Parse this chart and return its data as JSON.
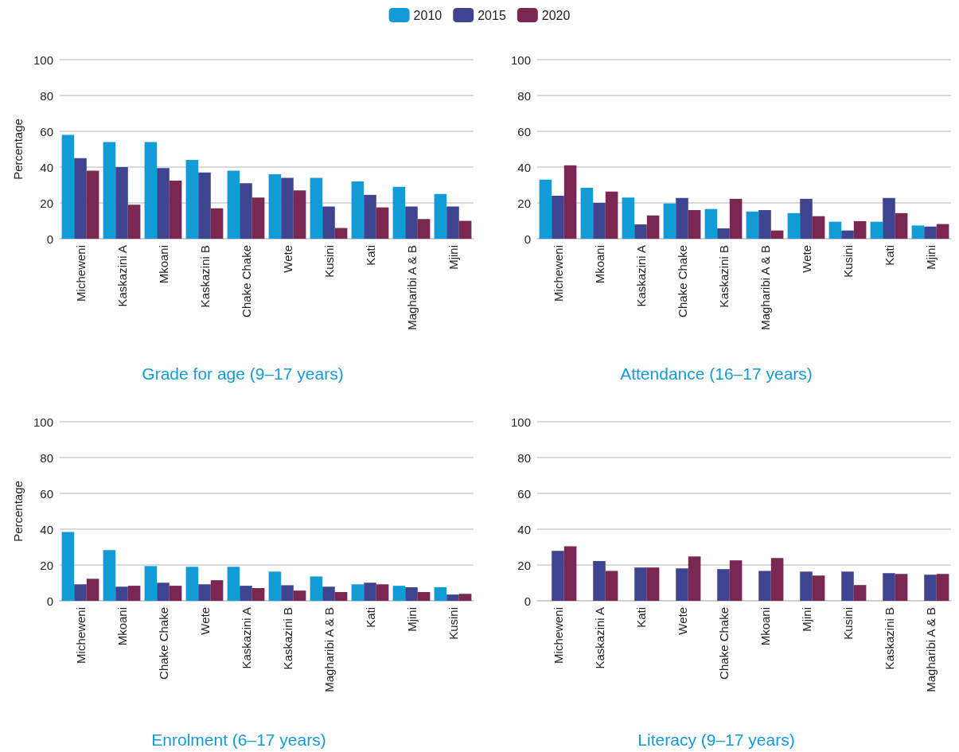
{
  "chart_data": [
    {
      "type": "bar",
      "title": "Grade for age (9–17 years)",
      "ylabel": "Percentage",
      "legend": "top",
      "grid": "y",
      "ylim": [
        0,
        100
      ],
      "yticks": [
        0,
        20,
        40,
        60,
        80,
        100
      ],
      "categories": [
        "Micheweni",
        "Kaskazini A",
        "Mkoani",
        "Kaskazini B",
        "Chake Chake",
        "Wete",
        "Kusini",
        "Kati",
        "Magharibi A & B",
        "Mjini"
      ],
      "series": [
        {
          "name": "2010",
          "color": "#139bd8",
          "values": [
            58,
            54,
            54,
            44,
            38,
            36,
            34,
            32,
            29,
            25
          ]
        },
        {
          "name": "2015",
          "color": "#3f4491",
          "values": [
            45,
            40,
            39.5,
            37,
            31,
            34,
            18,
            24.5,
            18,
            18
          ]
        },
        {
          "name": "2020",
          "color": "#7a2852",
          "values": [
            38,
            19,
            32.5,
            17,
            23,
            27,
            6,
            17.5,
            11,
            10
          ]
        }
      ]
    },
    {
      "type": "bar",
      "title": "Attendance (16–17 years)",
      "grid": "y",
      "ylim": [
        0,
        100
      ],
      "yticks": [
        0,
        20,
        40,
        60,
        80,
        100
      ],
      "categories": [
        "Micheweni",
        "Mkoani",
        "Kaskazini A",
        "Chake Chake",
        "Kaskazini B",
        "Magharibi A & B",
        "Wete",
        "Kusini",
        "Kati",
        "Mjini"
      ],
      "series": [
        {
          "name": "2010",
          "color": "#139bd8",
          "values": [
            33,
            28.5,
            23,
            19.7,
            16.6,
            15.2,
            14.3,
            9.5,
            9.5,
            7.4
          ]
        },
        {
          "name": "2015",
          "color": "#3f4491",
          "values": [
            24,
            20,
            8,
            22.8,
            5.8,
            16,
            22.3,
            4.6,
            22.8,
            6.8
          ]
        },
        {
          "name": "2020",
          "color": "#7a2852",
          "values": [
            41,
            26.3,
            13,
            16,
            22.3,
            4.6,
            12.6,
            9.8,
            14.3,
            8.2
          ]
        }
      ]
    },
    {
      "type": "bar",
      "title": "Enrolment (6–17 years)",
      "ylabel": "Percentage",
      "grid": "y",
      "ylim": [
        0,
        100
      ],
      "yticks": [
        0,
        20,
        40,
        60,
        80,
        100
      ],
      "categories": [
        "Micheweni",
        "Mkoani",
        "Chake Chake",
        "Wete",
        "Kaskazini A",
        "Kaskazini B",
        "Magharibi A & B",
        "Kati",
        "Mjini",
        "Kusini"
      ],
      "series": [
        {
          "name": "2010",
          "color": "#139bd8",
          "values": [
            38.4,
            28.3,
            19.4,
            19,
            19,
            16.3,
            13.6,
            9.2,
            8.4,
            7.6
          ]
        },
        {
          "name": "2015",
          "color": "#3f4491",
          "values": [
            9.2,
            7.9,
            10.1,
            9.2,
            8.4,
            8.7,
            7.9,
            10.1,
            7.6,
            3.5
          ]
        },
        {
          "name": "2020",
          "color": "#7a2852",
          "values": [
            12.3,
            8.4,
            8.4,
            11.5,
            7.1,
            5.7,
            4.9,
            9.2,
            4.9,
            3.9
          ]
        }
      ]
    },
    {
      "type": "bar",
      "title": "Literacy (9–17 years)",
      "grid": "y",
      "ylim": [
        0,
        100
      ],
      "yticks": [
        0,
        20,
        40,
        60,
        80,
        100
      ],
      "categories": [
        "Micheweni",
        "Kaskazini A",
        "Kati",
        "Wete",
        "Chake Chake",
        "Mkoani",
        "Mjini",
        "Kusini",
        "Kaskazini B",
        "Magharibi A & B"
      ],
      "series": [
        {
          "name": "2010",
          "color": "#139bd8",
          "values": [
            null,
            null,
            null,
            null,
            null,
            null,
            null,
            null,
            null,
            null
          ]
        },
        {
          "name": "2015",
          "color": "#3f4491",
          "values": [
            27.9,
            22.2,
            18.6,
            18.1,
            17.7,
            16.7,
            16.3,
            16.3,
            15.5,
            14.6
          ]
        },
        {
          "name": "2020",
          "color": "#7a2852",
          "values": [
            30.5,
            16.7,
            18.6,
            24.8,
            22.6,
            23.9,
            14.1,
            8.8,
            15,
            15
          ]
        }
      ]
    }
  ]
}
